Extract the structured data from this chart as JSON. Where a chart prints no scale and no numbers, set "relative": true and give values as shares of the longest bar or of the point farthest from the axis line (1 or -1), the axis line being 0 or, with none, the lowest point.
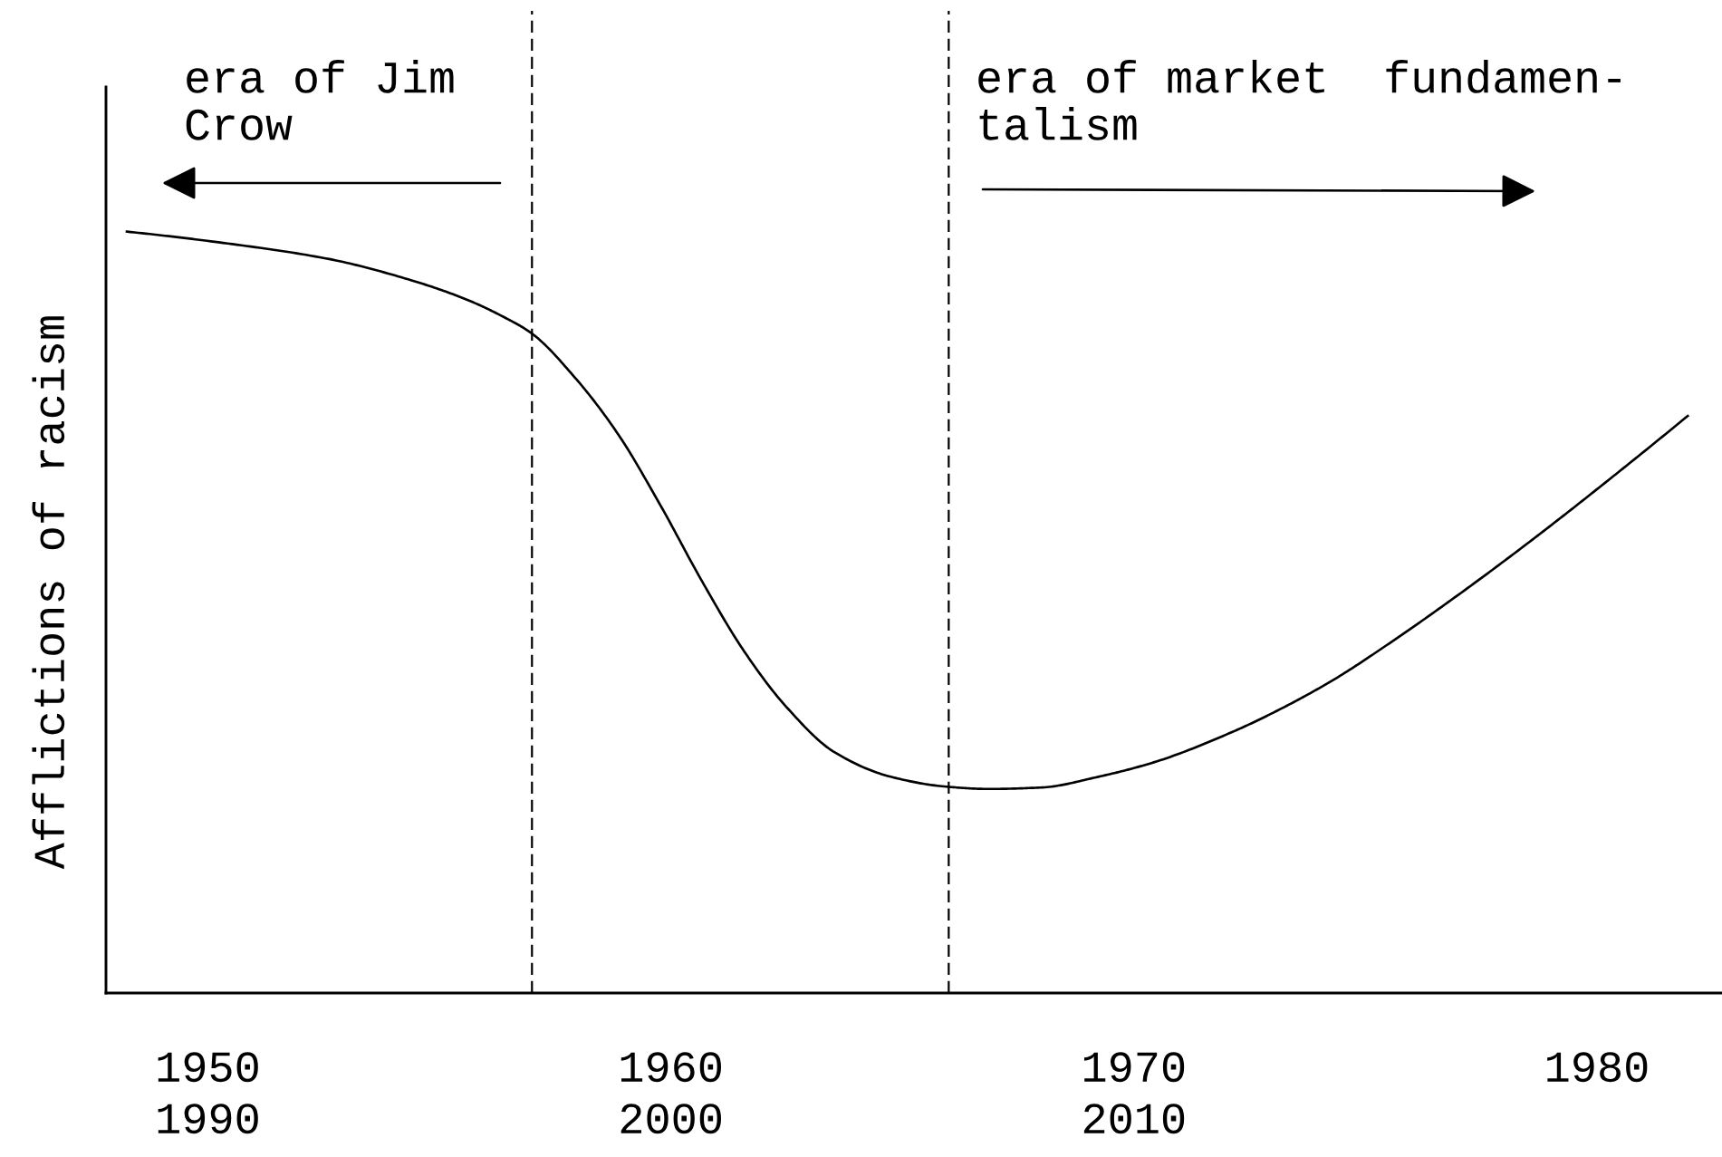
{
  "chart_data": {
    "type": "line",
    "relative": true,
    "ylabel": "Afflictions of racism",
    "x": [
      1948.25,
      1950.23,
      1952.62,
      1954.4,
      1955.58,
      1956.45,
      1956.98,
      1957.96,
      1958.87,
      1959.77,
      1960.68,
      1961.58,
      1962.49,
      1963.54,
      1964.75,
      1965.95,
      1966.86,
      1968.02,
      1969.23,
      1970.43,
      1972.13,
      1973.1,
      1974.3,
      1975.51,
      1977.21,
      1978.66,
      1980.11,
      1981.96
    ],
    "xlim": [
      1947.8,
      1982.7
    ],
    "xticks": [
      1950,
      1960,
      1970,
      1980
    ],
    "x2lim": [
      1987.8,
      2022.7
    ],
    "x2ticks": [
      1990,
      2000,
      2010
    ],
    "series": [
      {
        "color": "#000000",
        "values": [
          1.0,
          0.986,
          0.964,
          0.936,
          0.911,
          0.886,
          0.867,
          0.806,
          0.733,
          0.641,
          0.54,
          0.449,
          0.376,
          0.316,
          0.284,
          0.271,
          0.268,
          0.27,
          0.284,
          0.303,
          0.343,
          0.371,
          0.411,
          0.459,
          0.532,
          0.598,
          0.667,
          0.758
        ]
      }
    ],
    "ref_lines": [
      {
        "axis": "x",
        "value": 1957,
        "color": "#000000",
        "line_style": "dashed"
      },
      {
        "axis": "x",
        "value": 1966,
        "color": "#000000",
        "line_style": "dashed"
      }
    ],
    "annotations": [
      "era of Jim\nCrow",
      "era of market  fundamen-\ntalism"
    ],
    "line_style": "solid",
    "grid": false
  }
}
